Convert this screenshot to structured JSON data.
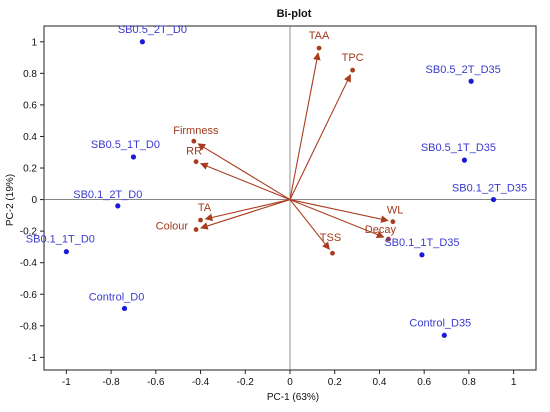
{
  "chart_data": {
    "type": "scatter",
    "title": "Bi-plot",
    "xlabel": "PC-1 (63%)",
    "ylabel": "PC-2 (19%)",
    "xlim": [
      -1.1,
      1.1
    ],
    "ylim": [
      -1.08,
      1.1
    ],
    "x_ticks": [
      -1,
      -0.8,
      -0.6,
      -0.4,
      -0.2,
      0,
      0.2,
      0.4,
      0.6,
      0.8,
      1
    ],
    "y_ticks": [
      1,
      0.8,
      0.6,
      0.4,
      0.2,
      0,
      -0.2,
      -0.4,
      -0.6,
      -0.8,
      -1
    ],
    "grid": false,
    "colors": {
      "scores": "#1a1ad6",
      "score_label": "#3a3ad0",
      "loadings": "#a93c1e",
      "loading_label": "#a13a1c",
      "axis": "#222222",
      "zero_line": "#777777"
    },
    "series": [
      {
        "name": "",
        "kind": "scores",
        "points": [
          {
            "label": "SB0.5_2T_D0",
            "x": -0.66,
            "y": 1.0
          },
          {
            "label": "SB0.5_1T_D0",
            "x": -0.7,
            "y": 0.27
          },
          {
            "label": "SB0.1_2T_D0",
            "x": -0.77,
            "y": -0.04
          },
          {
            "label": "SB0.1_1T_D0",
            "x": -1.0,
            "y": -0.33
          },
          {
            "label": "Control_D0",
            "x": -0.74,
            "y": -0.69
          },
          {
            "label": "SB0.5_2T_D35",
            "x": 0.81,
            "y": 0.75
          },
          {
            "label": "SB0.5_1T_D35",
            "x": 0.78,
            "y": 0.25
          },
          {
            "label": "SB0.1_2T_D35",
            "x": 0.91,
            "y": 0.0
          },
          {
            "label": "SB0.1_1T_D35",
            "x": 0.59,
            "y": -0.35
          },
          {
            "label": "Control_D35",
            "x": 0.69,
            "y": -0.86
          }
        ]
      },
      {
        "name": "",
        "kind": "loadings",
        "points": [
          {
            "label": "TAA",
            "x": 0.13,
            "y": 0.96
          },
          {
            "label": "TPC",
            "x": 0.28,
            "y": 0.82
          },
          {
            "label": "Firmness",
            "x": -0.43,
            "y": 0.37
          },
          {
            "label": "RR",
            "x": -0.42,
            "y": 0.24
          },
          {
            "label": "TA",
            "x": -0.4,
            "y": -0.13
          },
          {
            "label": "Colour",
            "x": -0.42,
            "y": -0.19
          },
          {
            "label": "WL",
            "x": 0.46,
            "y": -0.14
          },
          {
            "label": "Decay",
            "x": 0.44,
            "y": -0.25
          },
          {
            "label": "TSS",
            "x": 0.19,
            "y": -0.34
          }
        ]
      }
    ]
  }
}
